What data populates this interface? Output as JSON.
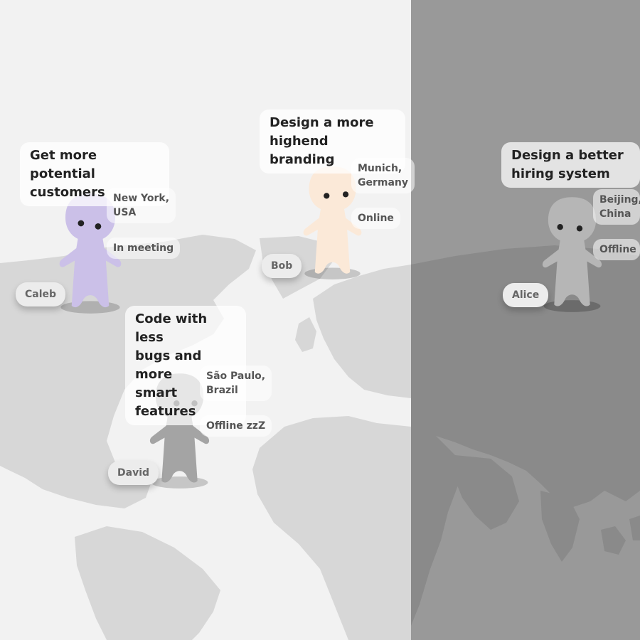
{
  "theme": {
    "left_background": "#f2f2f2",
    "right_background": "#999999",
    "land_light": "#d7d7d7",
    "land_dark": "#8a8a8a"
  },
  "people": [
    {
      "name": "Caleb",
      "location": "New York, USA",
      "location_lines": [
        "New York,",
        "USA"
      ],
      "status": "In meeting",
      "goal": "Get more potential customers",
      "goal_lines": [
        "Get more potential",
        "customers"
      ],
      "color": "#cbc0e8"
    },
    {
      "name": "Bob",
      "location": "Munich, Germany",
      "location_lines": [
        "Munich,",
        "Germany"
      ],
      "status": "Online",
      "goal": "Design a more highend branding",
      "goal_lines": [
        "Design a more",
        "highend branding"
      ],
      "color": "#fbe9d8"
    },
    {
      "name": "David",
      "location": "São Paulo, Brazil",
      "location_lines": [
        "São Paulo,",
        "Brazil"
      ],
      "status": "Offline zzZ",
      "goal": "Code with less bugs and more smart features",
      "goal_lines": [
        "Code with less",
        "bugs and more",
        "smart features"
      ],
      "color": "#a4a4a4"
    },
    {
      "name": "Alice",
      "location": "Beijing, China",
      "location_lines": [
        "Beijing,",
        "China"
      ],
      "status": "Offline",
      "goal": "Design a better hiring system",
      "goal_lines": [
        "Design a better",
        "hiring system"
      ],
      "color": "#b6b6b6"
    }
  ]
}
